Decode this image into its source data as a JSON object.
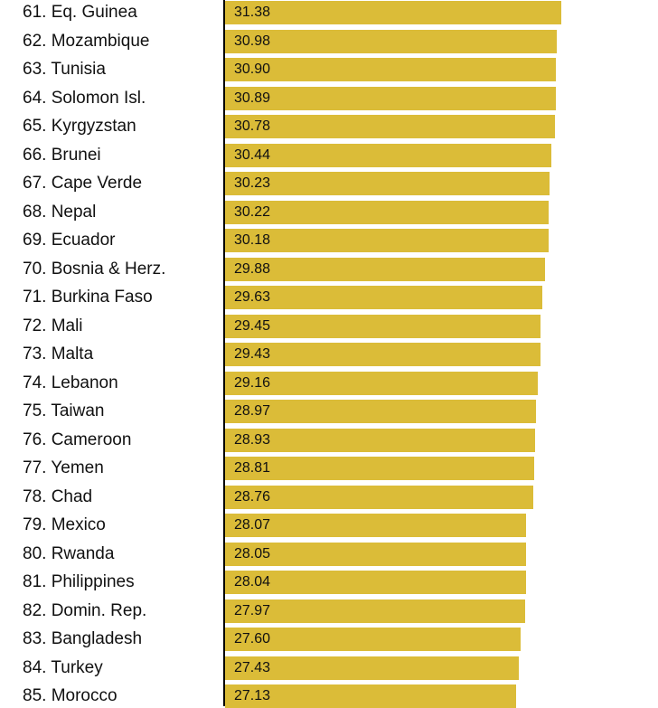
{
  "chart_data": {
    "type": "bar",
    "orientation": "horizontal",
    "title": "",
    "xlabel": "",
    "ylabel": "",
    "xlim": [
      0,
      31.38
    ],
    "grid": false,
    "legend": "none",
    "bar_color": "#dbbc38",
    "categories": [
      "61. Eq. Guinea",
      "62. Mozambique",
      "63. Tunisia",
      "64. Solomon Isl.",
      "65. Kyrgyzstan",
      "66. Brunei",
      "67. Cape Verde",
      "68. Nepal",
      "69. Ecuador",
      "70. Bosnia & Herz.",
      "71. Burkina Faso",
      "72. Mali",
      "73. Malta",
      "74. Lebanon",
      "75. Taiwan",
      "76. Cameroon",
      "77. Yemen",
      "78. Chad",
      "79. Mexico",
      "80. Rwanda",
      "81. Philippines",
      "82. Domin. Rep.",
      "83. Bangladesh",
      "84. Turkey",
      "85. Morocco"
    ],
    "values": [
      31.38,
      30.98,
      30.9,
      30.89,
      30.78,
      30.44,
      30.23,
      30.22,
      30.18,
      29.88,
      29.63,
      29.45,
      29.43,
      29.16,
      28.97,
      28.93,
      28.81,
      28.76,
      28.07,
      28.05,
      28.04,
      27.97,
      27.6,
      27.43,
      27.13
    ],
    "value_labels": [
      "31.38",
      "30.98",
      "30.90",
      "30.89",
      "30.78",
      "30.44",
      "30.23",
      "30.22",
      "30.18",
      "29.88",
      "29.63",
      "29.45",
      "29.43",
      "29.16",
      "28.97",
      "28.93",
      "28.81",
      "28.76",
      "28.07",
      "28.05",
      "28.04",
      "27.97",
      "27.60",
      "27.43",
      "27.13"
    ]
  }
}
